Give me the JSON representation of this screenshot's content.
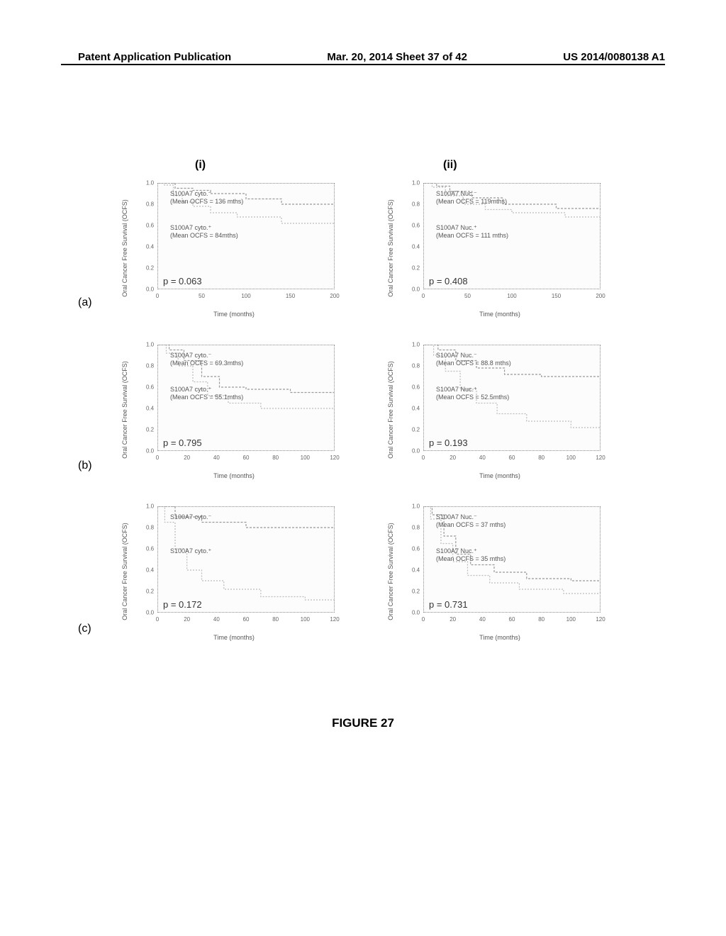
{
  "header": {
    "left": "Patent Application Publication",
    "center": "Mar. 20, 2014  Sheet 37 of 42",
    "right": "US 2014/0080138 A1"
  },
  "col_labels": {
    "i": "(i)",
    "ii": "(ii)"
  },
  "row_labels": {
    "a": "(a)",
    "b": "(b)",
    "c": "(c)"
  },
  "axes": {
    "y_label": "Oral Cancer Free Survival (OCFS)",
    "x_label": "Time (months)",
    "y_ticks": [
      "0.0",
      "0.2",
      "0.4",
      "0.6",
      "0.8",
      "1.0"
    ],
    "x_ticks_wide": [
      "0",
      "50",
      "100",
      "150",
      "200"
    ],
    "x_ticks_narrow": [
      "0",
      "20",
      "40",
      "60",
      "80",
      "100",
      "120"
    ]
  },
  "charts": {
    "a_i": {
      "type": "km",
      "x_range": "wide",
      "anno1_l1": "S100A7 cyto.⁻",
      "anno1_l2": "(Mean OCFS =  136 mths)",
      "anno2_l1": "S100A7 cyto.⁺",
      "anno2_l2": "(Mean OCFS =  84mths)",
      "p": "p = 0.063",
      "curve1": [
        [
          0,
          1.0
        ],
        [
          12,
          1.0
        ],
        [
          20,
          0.95
        ],
        [
          40,
          0.93
        ],
        [
          60,
          0.9
        ],
        [
          100,
          0.85
        ],
        [
          140,
          0.8
        ],
        [
          200,
          0.8
        ]
      ],
      "curve2": [
        [
          0,
          1.0
        ],
        [
          8,
          0.98
        ],
        [
          18,
          0.88
        ],
        [
          28,
          0.82
        ],
        [
          40,
          0.78
        ],
        [
          60,
          0.72
        ],
        [
          90,
          0.68
        ],
        [
          140,
          0.62
        ],
        [
          200,
          0.62
        ]
      ],
      "colors": {
        "c1": "#999999",
        "c2": "#bbbbbb"
      }
    },
    "a_ii": {
      "type": "km",
      "x_range": "wide",
      "anno1_l1": "S100A7 Nuc.⁻",
      "anno1_l2": "(Mean OCFS =  119mths)",
      "anno2_l1": "S100A7 Nuc.⁺",
      "anno2_l2": "(Mean OCFS =  111 mths)",
      "p": "p = 0.408",
      "curve1": [
        [
          0,
          1.0
        ],
        [
          15,
          0.97
        ],
        [
          30,
          0.92
        ],
        [
          55,
          0.86
        ],
        [
          90,
          0.8
        ],
        [
          150,
          0.76
        ],
        [
          200,
          0.76
        ]
      ],
      "curve2": [
        [
          0,
          1.0
        ],
        [
          10,
          0.96
        ],
        [
          25,
          0.88
        ],
        [
          45,
          0.8
        ],
        [
          70,
          0.75
        ],
        [
          100,
          0.72
        ],
        [
          160,
          0.68
        ],
        [
          200,
          0.68
        ]
      ],
      "colors": {
        "c1": "#999999",
        "c2": "#bbbbbb"
      }
    },
    "b_i": {
      "type": "km",
      "x_range": "narrow",
      "anno1_l1": "S100A7 cyto.⁻",
      "anno1_l2": "(Mean OCFS =  69.3mths)",
      "anno2_l1": "S100A7 cyto.⁺",
      "anno2_l2": "(Mean OCFS = 55.1mths)",
      "p": "p = 0.795",
      "curve1": [
        [
          0,
          1.0
        ],
        [
          8,
          0.95
        ],
        [
          18,
          0.85
        ],
        [
          30,
          0.7
        ],
        [
          42,
          0.6
        ],
        [
          60,
          0.58
        ],
        [
          90,
          0.55
        ],
        [
          120,
          0.55
        ]
      ],
      "curve2": [
        [
          0,
          1.0
        ],
        [
          6,
          0.92
        ],
        [
          14,
          0.8
        ],
        [
          24,
          0.65
        ],
        [
          34,
          0.52
        ],
        [
          48,
          0.45
        ],
        [
          70,
          0.4
        ],
        [
          120,
          0.4
        ]
      ],
      "colors": {
        "c1": "#999999",
        "c2": "#bbbbbb"
      }
    },
    "b_ii": {
      "type": "km",
      "x_range": "narrow",
      "anno1_l1": "S100A7 Nuc.⁻",
      "anno1_l2": "(Mean OCFS = 88.8 mths)",
      "anno2_l1": "S100A7 Nuc.⁺",
      "anno2_l2": "(Mean OCFS =  52.5mths)",
      "p": "p = 0.193",
      "curve1": [
        [
          0,
          1.0
        ],
        [
          10,
          0.95
        ],
        [
          22,
          0.85
        ],
        [
          36,
          0.78
        ],
        [
          55,
          0.72
        ],
        [
          80,
          0.7
        ],
        [
          120,
          0.7
        ]
      ],
      "curve2": [
        [
          0,
          1.0
        ],
        [
          7,
          0.9
        ],
        [
          15,
          0.75
        ],
        [
          25,
          0.58
        ],
        [
          36,
          0.45
        ],
        [
          50,
          0.35
        ],
        [
          70,
          0.28
        ],
        [
          100,
          0.22
        ],
        [
          120,
          0.22
        ]
      ],
      "colors": {
        "c1": "#999999",
        "c2": "#bbbbbb"
      }
    },
    "c_i": {
      "type": "km",
      "x_range": "narrow",
      "anno1_l1": "S100A7 cyto.⁻",
      "anno1_l2": "",
      "anno2_l1": "S100A7 cyto.⁺",
      "anno2_l2": "",
      "p": "p = 0.172",
      "curve1": [
        [
          0,
          1.0
        ],
        [
          6,
          1.0
        ],
        [
          12,
          0.9
        ],
        [
          30,
          0.85
        ],
        [
          60,
          0.8
        ],
        [
          120,
          0.8
        ]
      ],
      "curve2": [
        [
          0,
          1.0
        ],
        [
          5,
          0.85
        ],
        [
          12,
          0.6
        ],
        [
          20,
          0.4
        ],
        [
          30,
          0.3
        ],
        [
          45,
          0.22
        ],
        [
          70,
          0.15
        ],
        [
          100,
          0.12
        ],
        [
          120,
          0.12
        ]
      ],
      "colors": {
        "c1": "#999999",
        "c2": "#bbbbbb"
      }
    },
    "c_ii": {
      "type": "km",
      "x_range": "narrow",
      "anno1_l1": "S100A7 Nuc.⁻",
      "anno1_l2": "(Mean OCFS =  37 mths)",
      "anno2_l1": "S100A7 Nuc.⁺",
      "anno2_l2": "(Mean OCFS =  35 mths)",
      "p": "p = 0.731",
      "curve1": [
        [
          0,
          1.0
        ],
        [
          6,
          0.92
        ],
        [
          14,
          0.72
        ],
        [
          22,
          0.55
        ],
        [
          32,
          0.45
        ],
        [
          48,
          0.38
        ],
        [
          70,
          0.32
        ],
        [
          100,
          0.3
        ],
        [
          120,
          0.3
        ]
      ],
      "curve2": [
        [
          0,
          1.0
        ],
        [
          5,
          0.88
        ],
        [
          12,
          0.65
        ],
        [
          20,
          0.48
        ],
        [
          30,
          0.35
        ],
        [
          45,
          0.28
        ],
        [
          65,
          0.22
        ],
        [
          95,
          0.18
        ],
        [
          120,
          0.18
        ]
      ],
      "colors": {
        "c1": "#999999",
        "c2": "#bbbbbb"
      }
    }
  },
  "caption": "FIGURE 27",
  "style": {
    "plot_border_color": "#888888",
    "text_color": "#555555",
    "background": "#ffffff"
  }
}
